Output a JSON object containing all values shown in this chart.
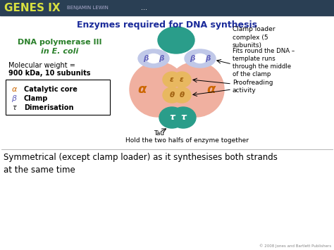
{
  "title": "Enzymes required for DNA synthesis",
  "header_bg": "#2a3f54",
  "header_text": "GENES IX",
  "header_subtext": "BENJAMIN LEWIN",
  "header_dots": "...",
  "bg_color": "#ffffff",
  "dna_pol_line1": "DNA polymerase III",
  "dna_pol_line2": "in E. coli",
  "mol_weight_line1": "Molecular weight =",
  "mol_weight_line2": "900 kDa, 10 subunits",
  "legend_alpha_sym": "α",
  "legend_beta_sym": "β",
  "legend_tau_sym": "τ",
  "legend_alpha_label": "Catalytic core",
  "legend_beta_label": "Clamp",
  "legend_tau_label": "Dimerisation",
  "clamp_loader_label": "Clamp loader\ncomplex (5\nsubunits)",
  "fits_round_label": "Fits round the DNA –\ntemplate runs\nthrough the middle\nof the clamp",
  "proofreading_label": "Proofreading\nactivity",
  "tau_bottom_label1": "Tau",
  "tau_bottom_label2": "Hold the two halfs of enzyme together",
  "bottom_text": "Symmetrical (except clamp loader) as it synthesises both strands\nat the same time",
  "copyright": "© 2008 Jones and Bartlett Publishers",
  "col_teal": "#2a9d8a",
  "col_purple": "#9090cc",
  "col_purple_fill": "#c0c8e8",
  "col_salmon": "#f0b0a0",
  "col_orange": "#e8b860",
  "col_green_text": "#2a802a",
  "col_blue_title": "#1a2a9a",
  "col_header_text": "#d8e040",
  "col_header_sub": "#aaaacc",
  "col_alpha_text": "#cc6600",
  "col_eps_text": "#a06010",
  "col_tau_text": "#ffffff",
  "col_beta_text": "#6060bb"
}
